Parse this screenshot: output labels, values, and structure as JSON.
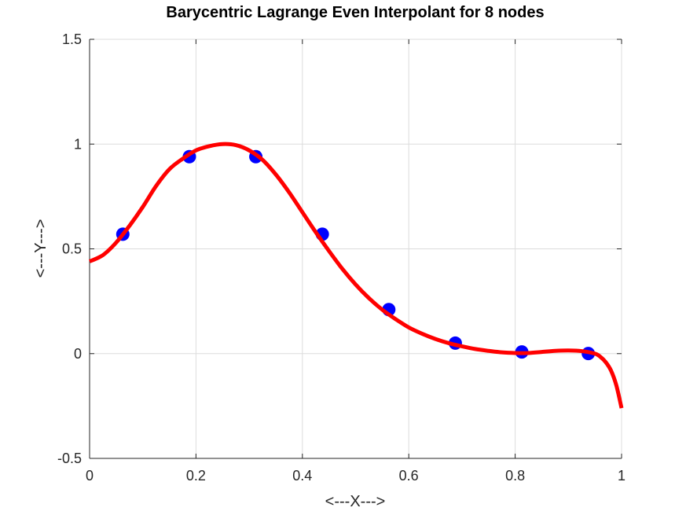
{
  "chart_data": {
    "type": "line",
    "title": "Barycentric Lagrange Even Interpolant for 8 nodes",
    "xlabel": "<---X--->",
    "ylabel": "<---Y--->",
    "xlim": [
      0,
      1
    ],
    "ylim": [
      -0.5,
      1.5
    ],
    "xticks": [
      0,
      0.2,
      0.4,
      0.6,
      0.8,
      1
    ],
    "xtick_labels": [
      "0",
      "0.2",
      "0.4",
      "0.6",
      "0.8",
      "1"
    ],
    "yticks": [
      -0.5,
      0,
      0.5,
      1,
      1.5
    ],
    "ytick_labels": [
      "-0.5",
      "0",
      "0.5",
      "1",
      "1.5"
    ],
    "grid": true,
    "legend": "none",
    "nodes": {
      "x": [
        0.0625,
        0.1875,
        0.3125,
        0.4375,
        0.5625,
        0.6875,
        0.8125,
        0.9375
      ],
      "y": [
        0.57,
        0.94,
        0.94,
        0.57,
        0.21,
        0.05,
        0.008,
        0.0005
      ],
      "color": "#0000ff"
    },
    "interpolant": {
      "color": "#ff0000",
      "x": [
        0,
        0.025,
        0.05,
        0.075,
        0.1,
        0.125,
        0.15,
        0.175,
        0.2,
        0.225,
        0.25,
        0.275,
        0.3,
        0.325,
        0.35,
        0.375,
        0.4,
        0.425,
        0.45,
        0.475,
        0.5,
        0.525,
        0.55,
        0.575,
        0.6,
        0.625,
        0.65,
        0.675,
        0.7,
        0.725,
        0.75,
        0.775,
        0.8,
        0.825,
        0.85,
        0.875,
        0.9,
        0.925,
        0.95,
        0.96,
        0.97,
        0.98,
        0.99,
        1.0
      ],
      "y": [
        0.44,
        0.47,
        0.53,
        0.61,
        0.7,
        0.8,
        0.88,
        0.93,
        0.97,
        0.99,
        1.0,
        0.995,
        0.97,
        0.925,
        0.855,
        0.77,
        0.675,
        0.58,
        0.49,
        0.405,
        0.33,
        0.265,
        0.21,
        0.165,
        0.125,
        0.095,
        0.07,
        0.05,
        0.035,
        0.022,
        0.013,
        0.006,
        0.003,
        0.003,
        0.008,
        0.013,
        0.015,
        0.012,
        0.0,
        -0.015,
        -0.04,
        -0.08,
        -0.15,
        -0.26
      ]
    }
  }
}
